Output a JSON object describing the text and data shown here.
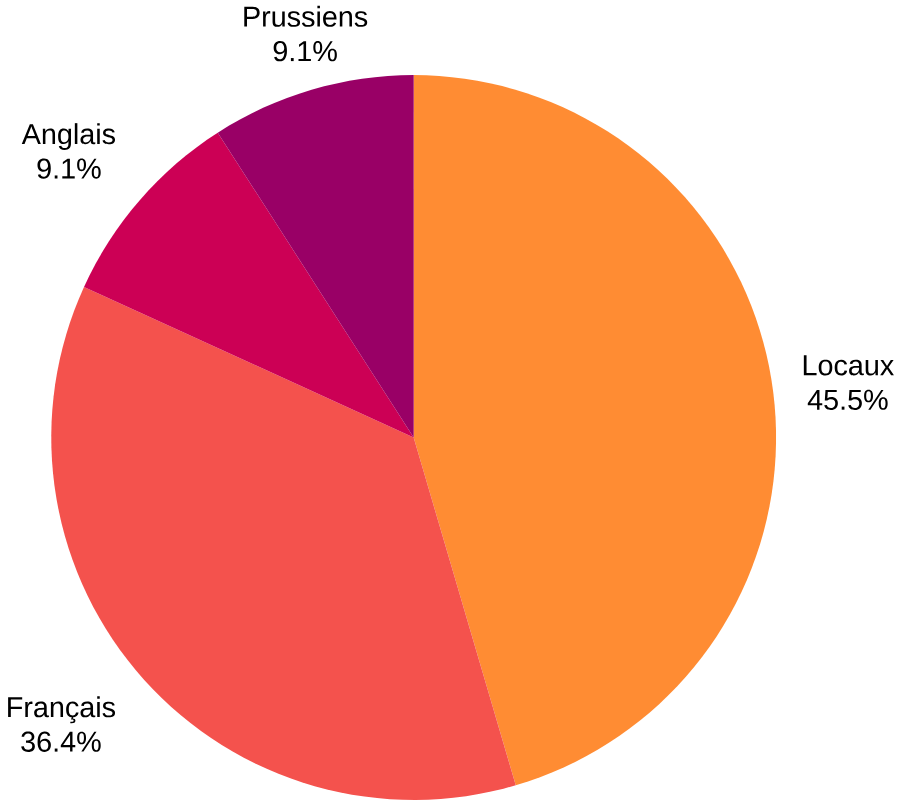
{
  "chart_data": {
    "type": "pie",
    "categories": [
      "Locaux",
      "Français",
      "Anglais",
      "Prussiens"
    ],
    "values": [
      45.5,
      36.4,
      9.1,
      9.1
    ],
    "value_labels": [
      "45.5%",
      "36.4%",
      "9.1%",
      "9.1%"
    ],
    "colors": [
      "#ff8c33",
      "#f4524d",
      "#cc0055",
      "#990066"
    ]
  }
}
